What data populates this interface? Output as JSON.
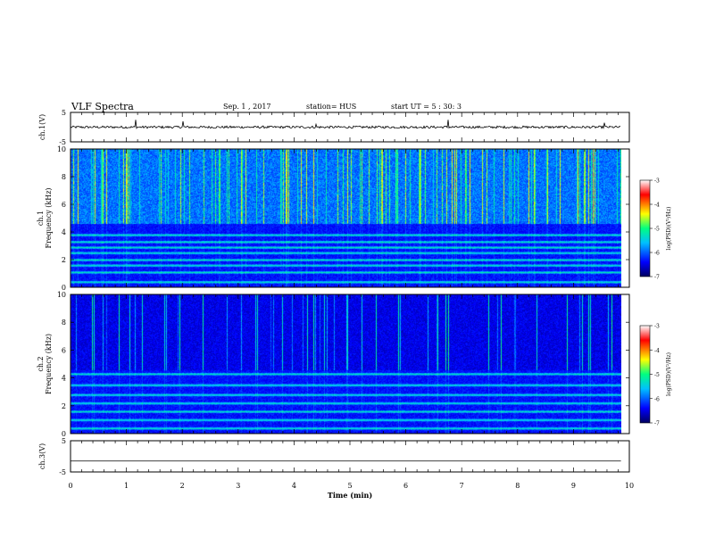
{
  "header": {
    "title": "VLF Spectra",
    "date": "Sep. 1 , 2017",
    "station": "station= HUS",
    "start_time": "start UT =  5 : 30: 3"
  },
  "colors": {
    "background": "#ffffff",
    "axis": "#000000",
    "colormap": [
      "#000060",
      "#0000ff",
      "#00c0ff",
      "#00ff80",
      "#ffff00",
      "#ff0000",
      "#ffffff"
    ]
  },
  "chart_data": [
    {
      "type": "line",
      "panel": "ch.1 waveform",
      "ylabel": "ch.1(V)",
      "ylim": [
        -5,
        5
      ],
      "yticks": [
        "5",
        "-5"
      ],
      "x": [
        0,
        1.17,
        2.02,
        4.4,
        6.75,
        9.55,
        9.85
      ],
      "values": [
        0,
        2.5,
        2.0,
        1.0,
        2.5,
        1.5,
        0
      ],
      "baseline": 0
    },
    {
      "type": "heatmap",
      "panel": "ch.1 spectrogram",
      "ylabel": "ch.1 Frequency (kHz)",
      "ylim": [
        0,
        10
      ],
      "yticks": [
        "0",
        "2",
        "4",
        "6",
        "8",
        "10"
      ],
      "colorbar": {
        "label": "log(PSD)(V²/Hz)",
        "range": [
          -7,
          -3
        ],
        "ticks": [
          "-3",
          "-4",
          "-5",
          "-6",
          "-7"
        ]
      },
      "horizontal_bands_khz": [
        0.4,
        1.1,
        1.6,
        2.0,
        2.5,
        2.9,
        3.3,
        3.8,
        4.7,
        5.0
      ],
      "emission_background": "strong broadband activity 5-10 kHz"
    },
    {
      "type": "heatmap",
      "panel": "ch.2 spectrogram",
      "ylabel": "ch.2 Frequency (kHz)",
      "ylim": [
        0,
        10
      ],
      "yticks": [
        "0",
        "2",
        "4",
        "6",
        "8",
        "10"
      ],
      "colorbar": {
        "label": "log(PSD)(V²/Hz)",
        "range": [
          -7,
          -3
        ],
        "ticks": [
          "-3",
          "-4",
          "-5",
          "-6",
          "-7"
        ]
      },
      "horizontal_bands_khz": [
        0.4,
        1.0,
        1.6,
        2.2,
        2.8,
        3.5,
        4.3
      ],
      "emission_background": "weak broadband activity 5-10 kHz"
    },
    {
      "type": "line",
      "panel": "ch.3 waveform",
      "ylabel": "ch.3(V)",
      "ylim": [
        -5,
        5
      ],
      "yticks": [
        "5",
        "-5"
      ],
      "x": [
        0,
        9.85
      ],
      "values": [
        -1.5,
        -1.5
      ]
    }
  ],
  "xaxis": {
    "label": "Time (min)",
    "range": [
      0,
      10
    ],
    "ticks": [
      "0",
      "1",
      "2",
      "3",
      "4",
      "5",
      "6",
      "7",
      "8",
      "9",
      "10"
    ],
    "data_end": 9.85
  }
}
